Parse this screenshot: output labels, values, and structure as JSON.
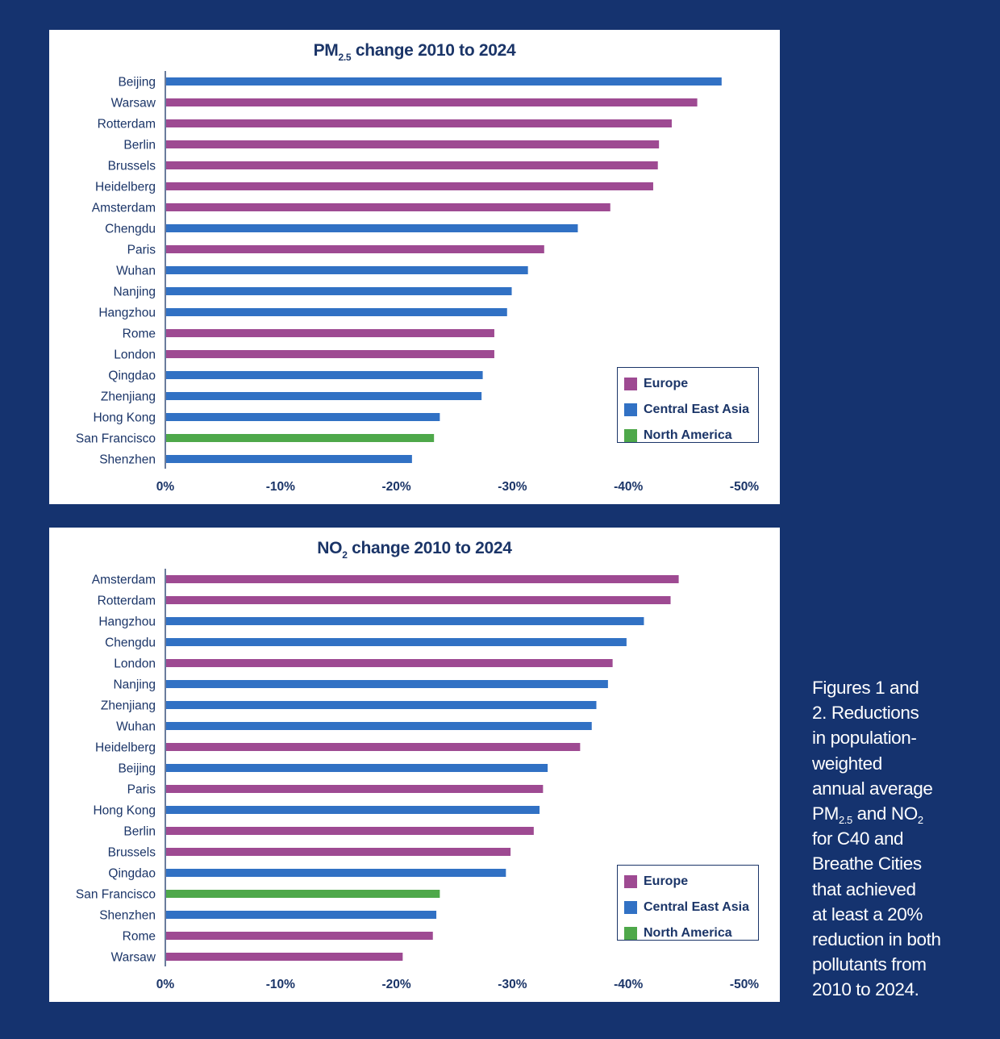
{
  "colors": {
    "background": "#15336f",
    "text": "#1b3568",
    "Europe": "#9e4a92",
    "Central East Asia": "#3171c4",
    "North America": "#4ea84a"
  },
  "legend": [
    {
      "label": "Europe",
      "region": "Europe"
    },
    {
      "label": "Central East Asia",
      "region": "Central East Asia"
    },
    {
      "label": "North America",
      "region": "North America"
    }
  ],
  "caption": {
    "lines": [
      "Figures 1 and",
      "2. Reductions",
      "in population-",
      "weighted",
      "annual average",
      {
        "main": "PM",
        "sub": "2.5",
        "middle": " and NO",
        "sub2": "2"
      },
      "for C40 and",
      "Breathe Cities",
      "that achieved",
      "at least a 20%",
      "reduction in both",
      "pollutants from",
      "2010 to 2024."
    ]
  },
  "chart_data": [
    {
      "type": "bar",
      "orientation": "horizontal",
      "title": "PM2.5 change 2010 to 2024",
      "title_parts": {
        "main": "PM",
        "sub": "2.5",
        "rest": " change 2010 to 2024"
      },
      "xlabel": "",
      "ylabel": "",
      "xlim": [
        0,
        -50
      ],
      "xticks": [
        0,
        -10,
        -20,
        -30,
        -40,
        -50
      ],
      "xtick_labels": [
        "0%",
        "-10%",
        "-20%",
        "-30%",
        "-40%",
        "-50%"
      ],
      "grid": false,
      "legend_position": "bottom-right",
      "categories": [
        "Beijing",
        "Warsaw",
        "Rotterdam",
        "Berlin",
        "Brussels",
        "Heidelberg",
        "Amsterdam",
        "Chengdu",
        "Paris",
        "Wuhan",
        "Nanjing",
        "Hangzhou",
        "Rome",
        "London",
        "Qingdao",
        "Zhenjiang",
        "Hong Kong",
        "San Francisco",
        "Shenzhen"
      ],
      "values": [
        -47.9,
        -45.8,
        -43.6,
        -42.5,
        -42.4,
        -42.0,
        -38.3,
        -35.5,
        -32.6,
        -31.2,
        -29.8,
        -29.4,
        -28.3,
        -28.3,
        -27.3,
        -27.2,
        -23.6,
        -23.1,
        -21.2
      ],
      "regions": [
        "Central East Asia",
        "Europe",
        "Europe",
        "Europe",
        "Europe",
        "Europe",
        "Europe",
        "Central East Asia",
        "Europe",
        "Central East Asia",
        "Central East Asia",
        "Central East Asia",
        "Europe",
        "Europe",
        "Central East Asia",
        "Central East Asia",
        "Central East Asia",
        "North America",
        "Central East Asia"
      ]
    },
    {
      "type": "bar",
      "orientation": "horizontal",
      "title": "NO2 change 2010 to 2024",
      "title_parts": {
        "main": "NO",
        "sub": "2",
        "rest": " change 2010 to 2024"
      },
      "xlabel": "",
      "ylabel": "",
      "xlim": [
        0,
        -50
      ],
      "xticks": [
        0,
        -10,
        -20,
        -30,
        -40,
        -50
      ],
      "xtick_labels": [
        "0%",
        "-10%",
        "-20%",
        "-30%",
        "-40%",
        "-50%"
      ],
      "grid": false,
      "legend_position": "bottom-right",
      "categories": [
        "Amsterdam",
        "Rotterdam",
        "Hangzhou",
        "Chengdu",
        "London",
        "Nanjing",
        "Zhenjiang",
        "Wuhan",
        "Heidelberg",
        "Beijing",
        "Paris",
        "Hong Kong",
        "Berlin",
        "Brussels",
        "Qingdao",
        "San Francisco",
        "Shenzhen",
        "Rome",
        "Warsaw"
      ],
      "values": [
        -44.2,
        -43.5,
        -41.2,
        -39.7,
        -38.5,
        -38.1,
        -37.1,
        -36.7,
        -35.7,
        -32.9,
        -32.5,
        -32.2,
        -31.7,
        -29.7,
        -29.3,
        -23.6,
        -23.3,
        -23.0,
        -20.4
      ],
      "regions": [
        "Europe",
        "Europe",
        "Central East Asia",
        "Central East Asia",
        "Europe",
        "Central East Asia",
        "Central East Asia",
        "Central East Asia",
        "Europe",
        "Central East Asia",
        "Europe",
        "Central East Asia",
        "Europe",
        "Europe",
        "Central East Asia",
        "North America",
        "Central East Asia",
        "Europe",
        "Europe"
      ]
    }
  ]
}
